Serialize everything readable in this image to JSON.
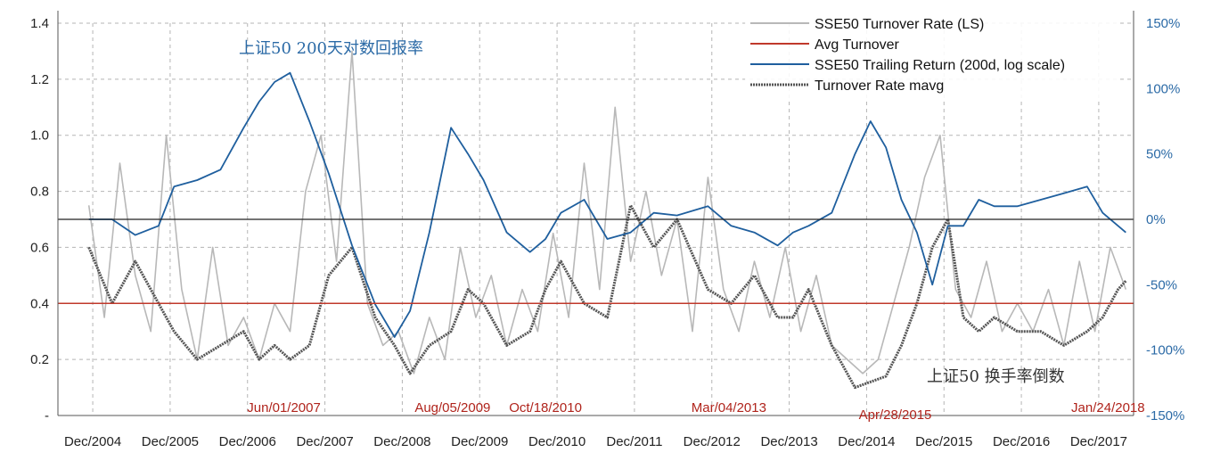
{
  "chart_data": {
    "type": "line",
    "title": "",
    "x_ticks": [
      "Dec/2004",
      "Dec/2005",
      "Dec/2006",
      "Dec/2007",
      "Dec/2008",
      "Dec/2009",
      "Dec/2010",
      "Dec/2011",
      "Dec/2012",
      "Dec/2013",
      "Dec/2014",
      "Dec/2015",
      "Dec/2016",
      "Dec/2017"
    ],
    "x_range": [
      2004.5,
      2018.4
    ],
    "y_left": {
      "ticks": [
        "1.4",
        "1.2",
        "1.0",
        "0.8",
        "0.6",
        "0.4",
        "0.2",
        "-"
      ],
      "range": [
        0,
        1.4
      ]
    },
    "y_right": {
      "ticks": [
        "150%",
        "100%",
        "50%",
        "0%",
        "-50%",
        "-100%",
        "-150%"
      ],
      "range": [
        -150,
        150
      ]
    },
    "legend": {
      "placement": "top-right",
      "entries": [
        {
          "name": "SSE50 Turnover Rate (LS)",
          "color": "#b8b8b8"
        },
        {
          "name": "Avg Turnover",
          "color": "#c0392b"
        },
        {
          "name": "SSE50 Trailing Return (200d, log scale)",
          "color": "#1f5f9e"
        },
        {
          "name": "Turnover Rate mavg",
          "color": "#555555"
        }
      ]
    },
    "annotations": {
      "blue_label": "上证50 200天对数回报率",
      "dark_label": "上证50 换手率倒数",
      "dates": [
        {
          "text": "Jun/01/2007",
          "x": 2007.42
        },
        {
          "text": "Aug/05/2009",
          "x": 2009.6
        },
        {
          "text": "Oct/18/2010",
          "x": 2010.8
        },
        {
          "text": "Mar/04/2013",
          "x": 2013.17
        },
        {
          "text": "Apr/28/2015",
          "x": 2015.32
        },
        {
          "text": "Jan/24/2018",
          "x": 2018.07
        }
      ]
    },
    "avg_turnover": 0.4,
    "zero_return_line": 0,
    "grid": "dashed",
    "series": [
      {
        "name": "SSE50 Trailing Return (200d, log scale)",
        "axis": "right",
        "x": [
          2004.9,
          2005.2,
          2005.5,
          2005.8,
          2006.0,
          2006.3,
          2006.6,
          2006.9,
          2007.1,
          2007.3,
          2007.5,
          2007.75,
          2008.0,
          2008.3,
          2008.6,
          2008.85,
          2009.05,
          2009.3,
          2009.58,
          2009.8,
          2010.0,
          2010.3,
          2010.6,
          2010.8,
          2011.0,
          2011.3,
          2011.6,
          2011.9,
          2012.2,
          2012.5,
          2012.9,
          2013.2,
          2013.5,
          2013.8,
          2014.0,
          2014.2,
          2014.5,
          2014.8,
          2015.0,
          2015.2,
          2015.4,
          2015.6,
          2015.8,
          2016.0,
          2016.2,
          2016.4,
          2016.6,
          2016.9,
          2017.2,
          2017.5,
          2017.8,
          2018.0,
          2018.2,
          2018.3
        ],
        "values": [
          0,
          0,
          -12,
          -5,
          25,
          30,
          38,
          70,
          90,
          105,
          112,
          75,
          35,
          -20,
          -65,
          -90,
          -70,
          -10,
          70,
          50,
          30,
          -10,
          -25,
          -15,
          5,
          15,
          -15,
          -10,
          5,
          3,
          10,
          -5,
          -10,
          -20,
          -10,
          -5,
          5,
          50,
          75,
          55,
          15,
          -10,
          -50,
          -5,
          -5,
          15,
          10,
          10,
          15,
          20,
          25,
          5,
          -5,
          -10
        ]
      },
      {
        "name": "Turnover Rate mavg",
        "axis": "left",
        "x": [
          2004.9,
          2005.2,
          2005.5,
          2005.8,
          2006.0,
          2006.3,
          2006.6,
          2006.9,
          2007.1,
          2007.3,
          2007.5,
          2007.75,
          2008.0,
          2008.3,
          2008.6,
          2008.85,
          2009.05,
          2009.3,
          2009.58,
          2009.8,
          2010.0,
          2010.3,
          2010.6,
          2010.8,
          2011.0,
          2011.3,
          2011.6,
          2011.9,
          2012.2,
          2012.5,
          2012.9,
          2013.2,
          2013.5,
          2013.8,
          2014.0,
          2014.2,
          2014.5,
          2014.8,
          2015.0,
          2015.2,
          2015.4,
          2015.6,
          2015.8,
          2016.0,
          2016.2,
          2016.4,
          2016.6,
          2016.9,
          2017.2,
          2017.5,
          2017.8,
          2018.0,
          2018.2,
          2018.3
        ],
        "values": [
          0.6,
          0.4,
          0.55,
          0.4,
          0.3,
          0.2,
          0.25,
          0.3,
          0.2,
          0.25,
          0.2,
          0.25,
          0.5,
          0.6,
          0.35,
          0.25,
          0.15,
          0.25,
          0.3,
          0.45,
          0.4,
          0.25,
          0.3,
          0.45,
          0.55,
          0.4,
          0.35,
          0.75,
          0.6,
          0.7,
          0.45,
          0.4,
          0.5,
          0.35,
          0.35,
          0.45,
          0.25,
          0.1,
          0.12,
          0.14,
          0.25,
          0.4,
          0.6,
          0.7,
          0.35,
          0.3,
          0.35,
          0.3,
          0.3,
          0.25,
          0.3,
          0.35,
          0.45,
          0.48
        ]
      },
      {
        "name": "SSE50 Turnover Rate (LS)",
        "axis": "left",
        "x": [
          2004.9,
          2005.1,
          2005.3,
          2005.5,
          2005.7,
          2005.9,
          2006.1,
          2006.3,
          2006.5,
          2006.7,
          2006.9,
          2007.1,
          2007.3,
          2007.5,
          2007.7,
          2007.9,
          2008.1,
          2008.3,
          2008.5,
          2008.7,
          2008.9,
          2009.1,
          2009.3,
          2009.5,
          2009.7,
          2009.9,
          2010.1,
          2010.3,
          2010.5,
          2010.7,
          2010.9,
          2011.1,
          2011.3,
          2011.5,
          2011.7,
          2011.9,
          2012.1,
          2012.3,
          2012.5,
          2012.7,
          2012.9,
          2013.1,
          2013.3,
          2013.5,
          2013.7,
          2013.9,
          2014.1,
          2014.3,
          2014.5,
          2014.7,
          2014.9,
          2015.1,
          2015.3,
          2015.5,
          2015.7,
          2015.9,
          2016.1,
          2016.3,
          2016.5,
          2016.7,
          2016.9,
          2017.1,
          2017.3,
          2017.5,
          2017.7,
          2017.9,
          2018.1,
          2018.3
        ],
        "values": [
          0.75,
          0.35,
          0.9,
          0.5,
          0.3,
          1.0,
          0.45,
          0.2,
          0.6,
          0.25,
          0.35,
          0.2,
          0.4,
          0.3,
          0.8,
          1.0,
          0.55,
          1.3,
          0.4,
          0.25,
          0.3,
          0.15,
          0.35,
          0.2,
          0.6,
          0.35,
          0.5,
          0.25,
          0.45,
          0.3,
          0.65,
          0.35,
          0.9,
          0.45,
          1.1,
          0.55,
          0.8,
          0.5,
          0.7,
          0.3,
          0.85,
          0.45,
          0.3,
          0.55,
          0.35,
          0.6,
          0.3,
          0.5,
          0.25,
          0.2,
          0.15,
          0.2,
          0.4,
          0.6,
          0.85,
          1.0,
          0.45,
          0.35,
          0.55,
          0.3,
          0.4,
          0.3,
          0.45,
          0.25,
          0.55,
          0.3,
          0.6,
          0.45
        ]
      }
    ]
  }
}
